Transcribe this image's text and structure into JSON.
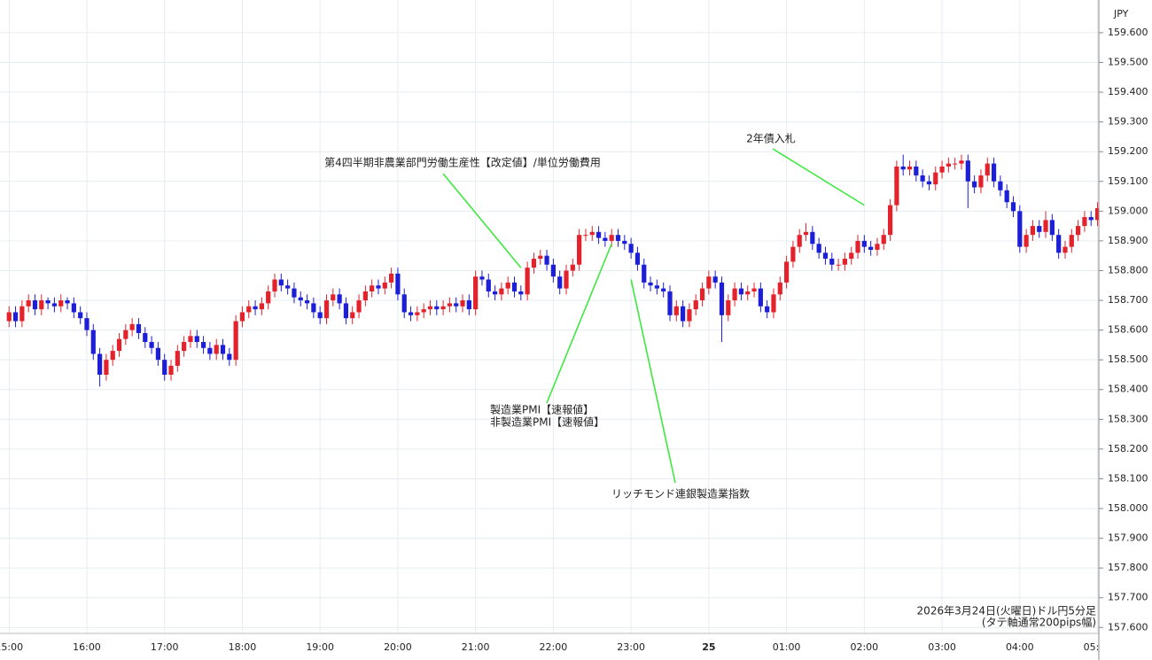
{
  "chart_data": {
    "type": "candlestick",
    "currency_label": "JPY",
    "up_color": "#e3222b",
    "down_color": "#1c1ed8",
    "grid": true,
    "xlim": [
      "14:53",
      "05:01"
    ],
    "ylim": [
      157.58,
      159.71
    ],
    "xticks": [
      "15:00",
      "16:00",
      "17:00",
      "18:00",
      "19:00",
      "20:00",
      "21:00",
      "22:00",
      "23:00",
      {
        "value": "00:00",
        "label": "25"
      },
      "01:00",
      "02:00",
      "03:00",
      "04:00",
      "05:00"
    ],
    "yticks": [
      {
        "value": 157.6,
        "label": "157.600"
      },
      {
        "value": 157.7,
        "label": "157.700"
      },
      {
        "value": 157.8,
        "label": "157.800"
      },
      {
        "value": 157.9,
        "label": "157.900"
      },
      {
        "value": 158.0,
        "label": "158.000"
      },
      {
        "value": 158.1,
        "label": "158.100"
      },
      {
        "value": 158.2,
        "label": "158.200"
      },
      {
        "value": 158.3,
        "label": "158.300"
      },
      {
        "value": 158.4,
        "label": "158.400"
      },
      {
        "value": 158.5,
        "label": "158.500"
      },
      {
        "value": 158.6,
        "label": "158.600"
      },
      {
        "value": 158.7,
        "label": "158.700"
      },
      {
        "value": 158.8,
        "label": "158.800"
      },
      {
        "value": 158.9,
        "label": "158.900"
      },
      {
        "value": 159.0,
        "label": "159.000"
      },
      {
        "value": 159.1,
        "label": "159.100"
      },
      {
        "value": 159.2,
        "label": "159.200"
      },
      {
        "value": 159.3,
        "label": "159.300"
      },
      {
        "value": 159.4,
        "label": "159.400"
      },
      {
        "value": 159.5,
        "label": "159.500"
      },
      {
        "value": 159.6,
        "label": "159.600"
      }
    ],
    "x": [
      "15:00",
      "15:05",
      "15:10",
      "15:15",
      "15:20",
      "15:25",
      "15:30",
      "15:35",
      "15:40",
      "15:45",
      "15:50",
      "15:55",
      "16:00",
      "16:05",
      "16:10",
      "16:15",
      "16:20",
      "16:25",
      "16:30",
      "16:35",
      "16:40",
      "16:45",
      "16:50",
      "16:55",
      "17:00",
      "17:05",
      "17:10",
      "17:15",
      "17:20",
      "17:25",
      "17:30",
      "17:35",
      "17:40",
      "17:45",
      "17:50",
      "17:55",
      "18:00",
      "18:05",
      "18:10",
      "18:15",
      "18:20",
      "18:25",
      "18:30",
      "18:35",
      "18:40",
      "18:45",
      "18:50",
      "18:55",
      "19:00",
      "19:05",
      "19:10",
      "19:15",
      "19:20",
      "19:25",
      "19:30",
      "19:35",
      "19:40",
      "19:45",
      "19:50",
      "19:55",
      "20:00",
      "20:05",
      "20:10",
      "20:15",
      "20:20",
      "20:25",
      "20:30",
      "20:35",
      "20:40",
      "20:45",
      "20:50",
      "20:55",
      "21:00",
      "21:05",
      "21:10",
      "21:15",
      "21:20",
      "21:25",
      "21:30",
      "21:35",
      "21:40",
      "21:45",
      "21:50",
      "21:55",
      "22:00",
      "22:05",
      "22:10",
      "22:15",
      "22:20",
      "22:25",
      "22:30",
      "22:35",
      "22:40",
      "22:45",
      "22:50",
      "22:55",
      "23:00",
      "23:05",
      "23:10",
      "23:15",
      "23:20",
      "23:25",
      "23:30",
      "23:35",
      "23:40",
      "23:45",
      "23:50",
      "23:55",
      "00:00",
      "00:05",
      "00:10",
      "00:15",
      "00:20",
      "00:25",
      "00:30",
      "00:35",
      "00:40",
      "00:45",
      "00:50",
      "00:55",
      "01:00",
      "01:05",
      "01:10",
      "01:15",
      "01:20",
      "01:25",
      "01:30",
      "01:35",
      "01:40",
      "01:45",
      "01:50",
      "01:55",
      "02:00",
      "02:05",
      "02:10",
      "02:15",
      "02:20",
      "02:25",
      "02:30",
      "02:35",
      "02:40",
      "02:45",
      "02:50",
      "02:55",
      "03:00",
      "03:05",
      "03:10",
      "03:15",
      "03:20",
      "03:25",
      "03:30",
      "03:35",
      "03:40",
      "03:45",
      "03:50",
      "03:55",
      "04:00",
      "04:05",
      "04:10",
      "04:15",
      "04:20",
      "04:25",
      "04:30",
      "04:35",
      "04:40",
      "04:45",
      "04:50",
      "04:55",
      "05:00"
    ],
    "open": [
      158.63,
      158.66,
      158.63,
      158.68,
      158.7,
      158.67,
      158.7,
      158.69,
      158.68,
      158.7,
      158.69,
      158.66,
      158.64,
      158.6,
      158.52,
      158.45,
      158.5,
      158.53,
      158.57,
      158.6,
      158.62,
      158.59,
      158.56,
      158.54,
      158.5,
      158.45,
      158.48,
      158.53,
      158.56,
      158.58,
      158.56,
      158.54,
      158.52,
      158.55,
      158.52,
      158.5,
      158.63,
      158.66,
      158.68,
      158.67,
      158.69,
      158.73,
      158.77,
      158.75,
      158.74,
      158.71,
      158.7,
      158.69,
      158.66,
      158.64,
      158.7,
      158.72,
      158.69,
      158.64,
      158.66,
      158.7,
      158.73,
      158.75,
      158.74,
      158.76,
      158.79,
      158.72,
      158.66,
      158.65,
      158.66,
      158.67,
      158.68,
      158.67,
      158.68,
      158.69,
      158.68,
      158.7,
      158.67,
      158.78,
      158.77,
      158.73,
      158.72,
      158.74,
      158.76,
      158.73,
      158.72,
      158.81,
      158.84,
      158.85,
      158.82,
      158.78,
      158.74,
      158.8,
      158.82,
      158.92,
      158.92,
      158.93,
      158.91,
      158.9,
      158.92,
      158.9,
      158.89,
      158.86,
      158.82,
      158.76,
      158.75,
      158.74,
      158.73,
      158.65,
      158.68,
      158.63,
      158.67,
      158.7,
      158.74,
      158.78,
      158.76,
      158.65,
      158.7,
      158.74,
      158.72,
      158.73,
      158.74,
      158.68,
      158.66,
      158.72,
      158.76,
      158.83,
      158.88,
      158.92,
      158.93,
      158.89,
      158.86,
      158.84,
      158.82,
      158.82,
      158.84,
      158.86,
      158.9,
      158.88,
      158.87,
      158.89,
      158.92,
      159.02,
      159.15,
      159.14,
      159.15,
      159.12,
      159.1,
      159.09,
      159.13,
      159.15,
      159.16,
      159.16,
      159.17,
      159.1,
      159.08,
      159.12,
      159.16,
      159.1,
      159.07,
      159.03,
      159.0,
      158.88,
      158.92,
      158.95,
      158.93,
      158.97,
      158.92,
      158.86,
      158.88,
      158.92,
      158.95,
      158.98,
      158.97
    ],
    "high": [
      158.68,
      158.68,
      158.7,
      158.72,
      158.72,
      158.72,
      158.71,
      158.71,
      158.72,
      158.71,
      158.71,
      158.68,
      158.66,
      158.62,
      158.54,
      158.52,
      158.55,
      158.59,
      158.62,
      158.64,
      158.64,
      158.61,
      158.58,
      158.56,
      158.52,
      158.5,
      158.55,
      158.58,
      158.6,
      158.6,
      158.58,
      158.56,
      158.57,
      158.57,
      158.54,
      158.65,
      158.68,
      158.7,
      158.7,
      158.71,
      158.75,
      158.79,
      158.79,
      158.77,
      158.76,
      158.73,
      158.72,
      158.71,
      158.68,
      158.72,
      158.74,
      158.74,
      158.71,
      158.68,
      158.72,
      158.75,
      158.77,
      158.77,
      158.78,
      158.81,
      158.81,
      158.74,
      158.68,
      158.68,
      158.69,
      158.7,
      158.7,
      158.7,
      158.71,
      158.71,
      158.72,
      158.72,
      158.8,
      158.8,
      158.79,
      158.75,
      158.76,
      158.78,
      158.78,
      158.75,
      158.83,
      158.86,
      158.87,
      158.87,
      158.84,
      158.8,
      158.82,
      158.84,
      158.94,
      158.94,
      158.95,
      158.95,
      158.93,
      158.94,
      158.94,
      158.92,
      158.91,
      158.88,
      158.84,
      158.78,
      158.77,
      158.76,
      158.75,
      158.7,
      158.7,
      158.69,
      158.72,
      158.76,
      158.8,
      158.8,
      158.78,
      158.72,
      158.76,
      158.76,
      158.75,
      158.76,
      158.76,
      158.7,
      158.74,
      158.78,
      158.85,
      158.9,
      158.94,
      158.96,
      158.95,
      158.91,
      158.88,
      158.86,
      158.84,
      158.86,
      158.88,
      158.92,
      158.92,
      158.9,
      158.91,
      158.94,
      159.04,
      159.17,
      159.19,
      159.17,
      159.17,
      159.14,
      159.12,
      159.15,
      159.17,
      159.18,
      159.18,
      159.19,
      159.19,
      159.12,
      159.14,
      159.18,
      159.18,
      159.12,
      159.09,
      159.05,
      159.02,
      158.94,
      158.97,
      158.97,
      159.0,
      158.99,
      158.94,
      158.9,
      158.94,
      158.97,
      159.0,
      159.0,
      159.03
    ],
    "low": [
      158.61,
      158.61,
      158.61,
      158.66,
      158.65,
      158.65,
      158.67,
      158.66,
      158.66,
      158.67,
      158.64,
      158.62,
      158.58,
      158.5,
      158.41,
      158.43,
      158.48,
      158.51,
      158.55,
      158.58,
      158.57,
      158.54,
      158.52,
      158.48,
      158.43,
      158.43,
      158.46,
      158.51,
      158.54,
      158.54,
      158.52,
      158.5,
      158.5,
      158.5,
      158.48,
      158.48,
      158.61,
      158.64,
      158.65,
      158.65,
      158.67,
      158.71,
      158.73,
      158.72,
      158.69,
      158.68,
      158.67,
      158.64,
      158.62,
      158.62,
      158.68,
      158.67,
      158.62,
      158.62,
      158.64,
      158.68,
      158.71,
      158.72,
      158.72,
      158.74,
      158.7,
      158.64,
      158.63,
      158.63,
      158.64,
      158.65,
      158.65,
      158.65,
      158.66,
      158.66,
      158.66,
      158.65,
      158.65,
      158.75,
      158.71,
      158.7,
      158.7,
      158.72,
      158.71,
      158.7,
      158.7,
      158.79,
      158.82,
      158.8,
      158.76,
      158.72,
      158.72,
      158.78,
      158.8,
      158.9,
      158.9,
      158.89,
      158.88,
      158.88,
      158.88,
      158.87,
      158.84,
      158.8,
      158.74,
      158.73,
      158.72,
      158.71,
      158.63,
      158.63,
      158.61,
      158.61,
      158.65,
      158.68,
      158.72,
      158.74,
      158.56,
      158.63,
      158.68,
      158.7,
      158.7,
      158.71,
      158.66,
      158.64,
      158.64,
      158.7,
      158.74,
      158.81,
      158.86,
      158.9,
      158.87,
      158.84,
      158.82,
      158.8,
      158.8,
      158.8,
      158.82,
      158.84,
      158.86,
      158.85,
      158.85,
      158.87,
      158.9,
      159.0,
      159.12,
      159.12,
      159.1,
      159.08,
      159.07,
      159.07,
      159.11,
      159.13,
      159.14,
      159.14,
      159.01,
      159.06,
      159.06,
      159.1,
      159.08,
      159.05,
      159.01,
      158.98,
      158.86,
      158.86,
      158.9,
      158.91,
      158.91,
      158.9,
      158.84,
      158.84,
      158.86,
      158.9,
      158.93,
      158.95,
      158.95
    ],
    "close": [
      158.66,
      158.63,
      158.68,
      158.7,
      158.67,
      158.7,
      158.69,
      158.68,
      158.7,
      158.69,
      158.66,
      158.64,
      158.6,
      158.52,
      158.45,
      158.5,
      158.53,
      158.57,
      158.6,
      158.62,
      158.59,
      158.56,
      158.54,
      158.5,
      158.45,
      158.48,
      158.53,
      158.56,
      158.58,
      158.56,
      158.54,
      158.52,
      158.55,
      158.52,
      158.5,
      158.63,
      158.66,
      158.68,
      158.67,
      158.69,
      158.73,
      158.77,
      158.75,
      158.74,
      158.71,
      158.7,
      158.69,
      158.66,
      158.64,
      158.7,
      158.72,
      158.69,
      158.64,
      158.66,
      158.7,
      158.73,
      158.75,
      158.74,
      158.76,
      158.79,
      158.72,
      158.66,
      158.65,
      158.66,
      158.67,
      158.68,
      158.67,
      158.68,
      158.69,
      158.68,
      158.7,
      158.67,
      158.78,
      158.77,
      158.73,
      158.72,
      158.74,
      158.76,
      158.73,
      158.72,
      158.81,
      158.84,
      158.85,
      158.82,
      158.78,
      158.74,
      158.8,
      158.82,
      158.92,
      158.92,
      158.93,
      158.91,
      158.9,
      158.92,
      158.9,
      158.89,
      158.86,
      158.82,
      158.76,
      158.75,
      158.74,
      158.73,
      158.65,
      158.68,
      158.63,
      158.67,
      158.7,
      158.74,
      158.78,
      158.76,
      158.65,
      158.7,
      158.74,
      158.72,
      158.73,
      158.74,
      158.68,
      158.66,
      158.72,
      158.76,
      158.83,
      158.88,
      158.92,
      158.93,
      158.89,
      158.86,
      158.84,
      158.82,
      158.82,
      158.84,
      158.86,
      158.9,
      158.88,
      158.87,
      158.89,
      158.92,
      159.02,
      159.15,
      159.14,
      159.15,
      159.12,
      159.1,
      159.09,
      159.13,
      159.15,
      159.16,
      159.16,
      159.17,
      159.1,
      159.08,
      159.12,
      159.16,
      159.1,
      159.07,
      159.03,
      159.0,
      158.88,
      158.92,
      158.95,
      158.93,
      158.97,
      158.92,
      158.86,
      158.88,
      158.92,
      158.95,
      158.98,
      158.97,
      159.01
    ],
    "annotations": [
      {
        "text": "第4四半期非農業部門労働生産性【改定値】/単位労働費用",
        "x": "21:35",
        "y": 158.81
      },
      {
        "text": [
          "製造業PMI【速報値】",
          "非製造業PMI【速報値】"
        ],
        "x": "22:45",
        "y": 158.89
      },
      {
        "text": "リッチモンド連銀製造業指数",
        "x": "23:00",
        "y": 158.77
      },
      {
        "text": "2年債入札",
        "x": "02:00",
        "y": 159.02
      }
    ],
    "note": [
      "2026年3月24日(火曜日)ドル円5分足",
      "(タテ軸通常200pips幅)"
    ]
  }
}
